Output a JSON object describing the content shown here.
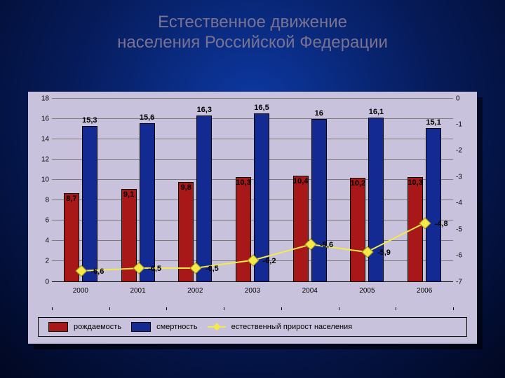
{
  "title_line1": "Естественное движение",
  "title_line2": "населения Российской Федерации",
  "title_color": "#7a7290",
  "title_fontsize": 24,
  "chart": {
    "type": "grouped-bar-with-line",
    "categories": [
      "2000",
      "2001",
      "2002",
      "2003",
      "2004",
      "2005",
      "2006"
    ],
    "series": {
      "birth": {
        "label": "рождаемость",
        "color": "#a81818",
        "values": [
          8.7,
          9.1,
          9.8,
          10.3,
          10.4,
          10.2,
          10.3
        ],
        "value_labels": [
          "8,7",
          "9,1",
          "9,8",
          "10,3",
          "10,4",
          "10,2",
          "10,3"
        ]
      },
      "death": {
        "label": "смертность",
        "color": "#122a92",
        "values": [
          15.3,
          15.6,
          16.3,
          16.5,
          16.0,
          16.1,
          15.1
        ],
        "value_labels": [
          "15,3",
          "15,6",
          "16,3",
          "16,5",
          "16",
          "16,1",
          "15,1"
        ]
      },
      "growth": {
        "label": "естественный прирост населения",
        "color": "#f5e84a",
        "values": [
          -6.6,
          -6.5,
          -6.5,
          -6.2,
          -5.6,
          -5.9,
          -4.8
        ],
        "value_labels": [
          "-6,6",
          "-6,5",
          "-6,5",
          "-6,2",
          "-5,6",
          "-5,9",
          "-4,8"
        ]
      }
    },
    "y_left": {
      "min": 0,
      "max": 18,
      "step": 2
    },
    "y_right": {
      "min": -7,
      "max": 0,
      "step": 1
    },
    "background_color": "#c8c2dc",
    "grid_color": "#7a7a7a",
    "tick_fontsize": 10,
    "datalabel_fontsize": 11
  }
}
